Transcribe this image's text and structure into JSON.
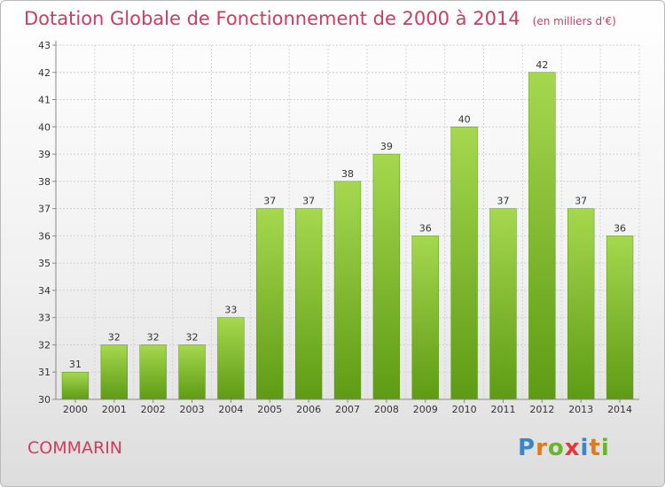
{
  "chart_data": {
    "type": "bar",
    "title": "Dotation Globale de Fonctionnement de 2000 à 2014",
    "unit": "(en milliers d'€)",
    "categories": [
      "2000",
      "2001",
      "2002",
      "2003",
      "2004",
      "2005",
      "2006",
      "2007",
      "2008",
      "2009",
      "2010",
      "2011",
      "2012",
      "2013",
      "2014"
    ],
    "values": [
      31,
      32,
      32,
      32,
      33,
      37,
      37,
      38,
      39,
      36,
      40,
      37,
      42,
      37,
      36
    ],
    "ylim": [
      30,
      43
    ],
    "yticks": [
      30,
      31,
      32,
      33,
      34,
      35,
      36,
      37,
      38,
      39,
      40,
      41,
      42,
      43
    ],
    "grid": true,
    "bar_color": "#7dbb2e"
  },
  "commune": "COMMARIN",
  "logo": {
    "text": "Proxiti"
  }
}
